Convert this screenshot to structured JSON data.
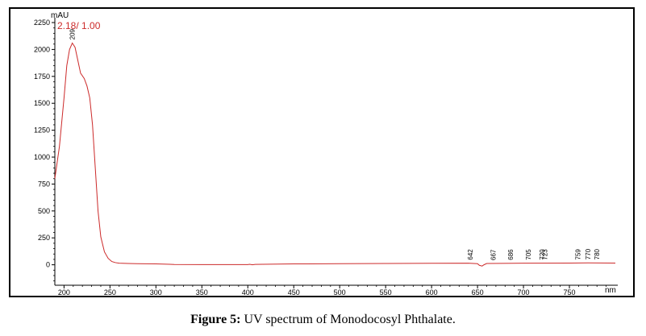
{
  "figure": {
    "caption_label": "Figure 5:",
    "caption_text": " UV spectrum of Monodocosyl Phthalate."
  },
  "chart_data": {
    "type": "line",
    "title": "",
    "trace_label": "2.18/ 1.00",
    "xlabel": "nm",
    "ylabel": "mAU",
    "xlim": [
      190,
      800
    ],
    "ylim": [
      -190,
      2250
    ],
    "x_ticks": [
      200,
      250,
      300,
      350,
      400,
      450,
      500,
      550,
      600,
      650,
      700,
      750
    ],
    "x_tick_labels": [
      "200",
      "250",
      "300",
      "350",
      "400",
      "450",
      "500",
      "550",
      "600",
      "650",
      "700",
      "750"
    ],
    "y_ticks": [
      0,
      250,
      500,
      750,
      1000,
      1250,
      1500,
      1750,
      2000,
      2250
    ],
    "y_tick_labels": [
      "0",
      "250",
      "500",
      "750",
      "1000",
      "1250",
      "1500",
      "1750",
      "2000",
      "2250"
    ],
    "grid": false,
    "line_color": "#cc2a2a",
    "series": [
      {
        "x": [
          190,
          195,
          200,
          203,
          206,
          209,
          212,
          215,
          218,
          222,
          225,
          228,
          231,
          234,
          237,
          240,
          244,
          248,
          252,
          256,
          260,
          270,
          280,
          300,
          315,
          320,
          350,
          400,
          402,
          405,
          408,
          450,
          500,
          550,
          600,
          640,
          650,
          652,
          655,
          657,
          660,
          700,
          750,
          770,
          800
        ],
        "y": [
          800,
          1100,
          1550,
          1850,
          2000,
          2060,
          2020,
          1900,
          1780,
          1730,
          1660,
          1550,
          1300,
          900,
          500,
          260,
          120,
          60,
          30,
          20,
          15,
          12,
          10,
          8,
          5,
          3,
          2,
          2,
          5,
          0,
          4,
          8,
          10,
          12,
          14,
          15,
          10,
          -5,
          -12,
          0,
          12,
          15,
          16,
          18,
          16
        ]
      }
    ],
    "peak_labels": [
      {
        "x": 209,
        "y": 2060,
        "label": "209"
      },
      {
        "x": 642,
        "y": 15,
        "label": "642"
      },
      {
        "x": 667,
        "y": 12,
        "label": "667"
      },
      {
        "x": 686,
        "y": 14,
        "label": "686"
      },
      {
        "x": 705,
        "y": 15,
        "label": "705"
      },
      {
        "x": 720,
        "y": 15,
        "label": "720"
      },
      {
        "x": 723,
        "y": 15,
        "label": "723"
      },
      {
        "x": 759,
        "y": 16,
        "label": "759"
      },
      {
        "x": 770,
        "y": 18,
        "label": "770"
      },
      {
        "x": 780,
        "y": 17,
        "label": "780"
      }
    ]
  }
}
